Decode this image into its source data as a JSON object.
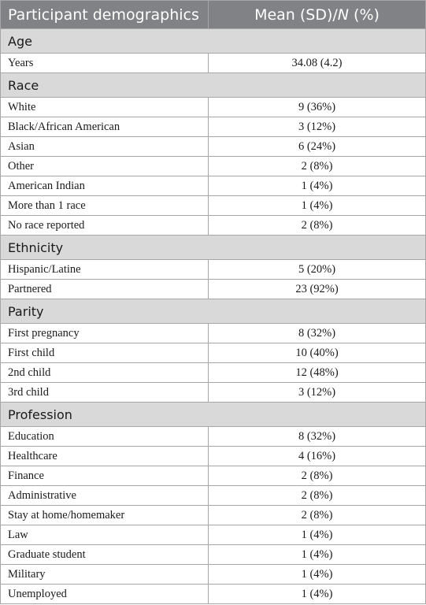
{
  "header": {
    "col1": "Participant demographics",
    "col2_prefix": "Mean (SD)/",
    "col2_italic": "N",
    "col2_suffix": " (%)"
  },
  "sections": [
    {
      "title": "Age",
      "rows": [
        {
          "label": "Years",
          "value": "34.08 (4.2)"
        }
      ]
    },
    {
      "title": "Race",
      "rows": [
        {
          "label": "White",
          "value": "9 (36%)"
        },
        {
          "label": "Black/African American",
          "value": "3 (12%)"
        },
        {
          "label": "Asian",
          "value": "6 (24%)"
        },
        {
          "label": "Other",
          "value": "2 (8%)"
        },
        {
          "label": "American Indian",
          "value": "1 (4%)"
        },
        {
          "label": "More than 1 race",
          "value": "1 (4%)"
        },
        {
          "label": "No race reported",
          "value": "2 (8%)"
        }
      ]
    },
    {
      "title": "Ethnicity",
      "rows": [
        {
          "label": "Hispanic/Latine",
          "value": "5 (20%)"
        },
        {
          "label": "Partnered",
          "value": "23 (92%)"
        }
      ]
    },
    {
      "title": "Parity",
      "rows": [
        {
          "label": "First pregnancy",
          "value": "8 (32%)"
        },
        {
          "label": "First child",
          "value": "10 (40%)"
        },
        {
          "label": "2nd child",
          "value": "12 (48%)"
        },
        {
          "label": "3rd child",
          "value": "3 (12%)"
        }
      ]
    },
    {
      "title": "Profession",
      "rows": [
        {
          "label": "Education",
          "value": "8 (32%)"
        },
        {
          "label": "Healthcare",
          "value": "4 (16%)"
        },
        {
          "label": "Finance",
          "value": "2 (8%)"
        },
        {
          "label": "Administrative",
          "value": "2 (8%)"
        },
        {
          "label": "Stay at home/homemaker",
          "value": "2 (8%)"
        },
        {
          "label": "Law",
          "value": "1 (4%)"
        },
        {
          "label": "Graduate student",
          "value": "1 (4%)"
        },
        {
          "label": "Military",
          "value": "1 (4%)"
        },
        {
          "label": "Unemployed",
          "value": "1 (4%)"
        }
      ]
    }
  ]
}
